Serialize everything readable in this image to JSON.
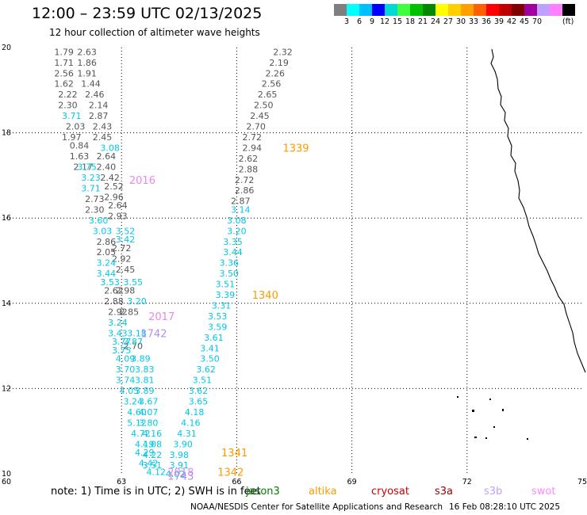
{
  "header": {
    "title": "12:00 – 23:59 UTC 02/13/2025",
    "subtitle": "12 hour collection of altimeter wave heights"
  },
  "colorbar": {
    "colors": [
      "#7f7f7f",
      "#00ffff",
      "#00bfff",
      "#0000ff",
      "#00d8d8",
      "#40ff40",
      "#00c000",
      "#008800",
      "#ffff00",
      "#ffd000",
      "#ffa000",
      "#ff6000",
      "#ff0000",
      "#c00000",
      "#800000",
      "#a000a0",
      "#c0a0ff",
      "#ff80ff",
      "#000000"
    ],
    "labels": [
      "3",
      "6",
      "9",
      "12",
      "15",
      "18",
      "21",
      "24",
      "27",
      "30",
      "33",
      "36",
      "39",
      "42",
      "45",
      "70"
    ],
    "unit": "(ft)"
  },
  "footer": {
    "note": "note: 1) Time is in UTC; 2) SWH is in feet",
    "satellites": [
      {
        "name": "jason3",
        "color": "#008000"
      },
      {
        "name": "altika",
        "color": "#ff9900"
      },
      {
        "name": "cryosat",
        "color": "#cc0000"
      },
      {
        "name": "s3a",
        "color": "#990000"
      },
      {
        "name": "s3b",
        "color": "#c0a0ff"
      },
      {
        "name": "swot",
        "color": "#ff88ff"
      }
    ],
    "credit": "NOAA/NESDIS Center for Satellite Applications and Research",
    "timestamp": "16 Feb 08:28:10 UTC 2025"
  },
  "chart_data": {
    "type": "scatter",
    "xlim": [
      60,
      75
    ],
    "ylim": [
      10,
      20
    ],
    "x_ticks": [
      "60",
      "63",
      "66",
      "69",
      "72",
      "75"
    ],
    "y_ticks": [
      "10",
      "12",
      "14",
      "16",
      "18",
      "20"
    ],
    "grid": true,
    "tracks": [
      {
        "name": "gray-west",
        "color": "#555555",
        "points": [
          {
            "x": 61.5,
            "y": 19.9,
            "v": "1.79"
          },
          {
            "x": 61.5,
            "y": 19.65,
            "v": "1.71"
          },
          {
            "x": 61.5,
            "y": 19.4,
            "v": "2.56"
          },
          {
            "x": 61.5,
            "y": 19.15,
            "v": "1.62"
          },
          {
            "x": 61.6,
            "y": 18.9,
            "v": "2.22"
          },
          {
            "x": 61.6,
            "y": 18.65,
            "v": "2.30"
          },
          {
            "x": 61.8,
            "y": 18.15,
            "v": "2.03"
          },
          {
            "x": 61.7,
            "y": 17.9,
            "v": "1.97"
          },
          {
            "x": 61.9,
            "y": 17.7,
            "v": "0.84"
          },
          {
            "x": 61.9,
            "y": 17.45,
            "v": "1.63"
          },
          {
            "x": 62.0,
            "y": 17.2,
            "v": "2.17"
          },
          {
            "x": 62.3,
            "y": 16.45,
            "v": "2.73"
          },
          {
            "x": 62.3,
            "y": 16.2,
            "v": "2.30"
          },
          {
            "x": 62.6,
            "y": 15.45,
            "v": "2.86"
          },
          {
            "x": 62.6,
            "y": 15.2,
            "v": "2.05"
          },
          {
            "x": 62.8,
            "y": 14.3,
            "v": "2.62"
          },
          {
            "x": 62.8,
            "y": 14.05,
            "v": "2.88"
          },
          {
            "x": 62.9,
            "y": 13.8,
            "v": "2.92"
          }
        ]
      },
      {
        "name": "gray-east",
        "color": "#555555",
        "points": [
          {
            "x": 62.1,
            "y": 19.9,
            "v": "2.63"
          },
          {
            "x": 62.1,
            "y": 19.65,
            "v": "1.86"
          },
          {
            "x": 62.1,
            "y": 19.4,
            "v": "1.91"
          },
          {
            "x": 62.2,
            "y": 19.15,
            "v": "1.44"
          },
          {
            "x": 62.3,
            "y": 18.9,
            "v": "2.46"
          },
          {
            "x": 62.4,
            "y": 18.65,
            "v": "2.14"
          },
          {
            "x": 62.4,
            "y": 18.4,
            "v": "2.87"
          },
          {
            "x": 62.5,
            "y": 18.15,
            "v": "2.43"
          },
          {
            "x": 62.5,
            "y": 17.9,
            "v": "2.45"
          },
          {
            "x": 62.6,
            "y": 17.45,
            "v": "2.64"
          },
          {
            "x": 62.6,
            "y": 17.2,
            "v": "2.40"
          },
          {
            "x": 62.7,
            "y": 16.95,
            "v": "2.42"
          },
          {
            "x": 62.8,
            "y": 16.75,
            "v": "2.52"
          },
          {
            "x": 62.8,
            "y": 16.5,
            "v": "2.96"
          },
          {
            "x": 62.9,
            "y": 16.3,
            "v": "2.64"
          },
          {
            "x": 62.9,
            "y": 16.05,
            "v": "2.93"
          },
          {
            "x": 63.0,
            "y": 15.3,
            "v": "2.72"
          },
          {
            "x": 63.0,
            "y": 15.05,
            "v": "2.92"
          },
          {
            "x": 63.1,
            "y": 14.8,
            "v": "2.45"
          },
          {
            "x": 63.1,
            "y": 14.3,
            "v": "2.98"
          },
          {
            "x": 63.2,
            "y": 13.8,
            "v": "2.85"
          },
          {
            "x": 63.3,
            "y": 13.0,
            "v": "2.70"
          }
        ]
      },
      {
        "name": "cyan-west",
        "color": "#00c8e6",
        "points": [
          {
            "x": 61.7,
            "y": 18.4,
            "v": "3.71"
          },
          {
            "x": 62.1,
            "y": 17.2,
            "v": "3.75"
          },
          {
            "x": 62.2,
            "y": 16.95,
            "v": "3.23"
          },
          {
            "x": 62.2,
            "y": 16.7,
            "v": "3.71"
          },
          {
            "x": 62.4,
            "y": 15.95,
            "v": "3.60"
          },
          {
            "x": 62.5,
            "y": 15.7,
            "v": "3.03"
          },
          {
            "x": 62.6,
            "y": 14.95,
            "v": "3.24"
          },
          {
            "x": 62.6,
            "y": 14.7,
            "v": "3.44"
          },
          {
            "x": 62.7,
            "y": 14.5,
            "v": "3.53"
          },
          {
            "x": 62.9,
            "y": 13.55,
            "v": "3.24"
          },
          {
            "x": 62.9,
            "y": 13.3,
            "v": "3.43"
          },
          {
            "x": 63.0,
            "y": 13.1,
            "v": "3.77"
          },
          {
            "x": 63.0,
            "y": 12.9,
            "v": "3.75"
          },
          {
            "x": 63.1,
            "y": 12.7,
            "v": "4.09"
          },
          {
            "x": 63.1,
            "y": 12.45,
            "v": "3.70"
          },
          {
            "x": 63.1,
            "y": 12.2,
            "v": "3.74"
          },
          {
            "x": 63.2,
            "y": 11.95,
            "v": "4.05"
          },
          {
            "x": 63.3,
            "y": 11.7,
            "v": "3.24"
          },
          {
            "x": 63.4,
            "y": 11.45,
            "v": "4.60"
          },
          {
            "x": 63.4,
            "y": 11.2,
            "v": "5.12"
          },
          {
            "x": 63.5,
            "y": 10.95,
            "v": "4.72"
          },
          {
            "x": 63.6,
            "y": 10.7,
            "v": "4.19"
          },
          {
            "x": 63.6,
            "y": 10.5,
            "v": "4.29"
          },
          {
            "x": 63.7,
            "y": 10.25,
            "v": "4.42"
          }
        ]
      },
      {
        "name": "cyan-east",
        "color": "#00c8e6",
        "points": [
          {
            "x": 62.7,
            "y": 17.65,
            "v": "3.08"
          },
          {
            "x": 63.1,
            "y": 15.7,
            "v": "3.52"
          },
          {
            "x": 63.1,
            "y": 15.5,
            "v": "3.42"
          },
          {
            "x": 63.3,
            "y": 14.5,
            "v": "3.55"
          },
          {
            "x": 63.4,
            "y": 14.05,
            "v": "3.20"
          },
          {
            "x": 63.4,
            "y": 13.3,
            "v": "3.18"
          },
          {
            "x": 63.3,
            "y": 13.1,
            "v": "3.87"
          },
          {
            "x": 63.5,
            "y": 12.7,
            "v": "3.89"
          },
          {
            "x": 63.6,
            "y": 12.45,
            "v": "3.83"
          },
          {
            "x": 63.6,
            "y": 12.2,
            "v": "3.81"
          },
          {
            "x": 63.6,
            "y": 11.95,
            "v": "3.89"
          },
          {
            "x": 63.7,
            "y": 11.7,
            "v": "3.67"
          },
          {
            "x": 63.7,
            "y": 11.45,
            "v": "4.07"
          },
          {
            "x": 63.7,
            "y": 11.2,
            "v": "3.80"
          },
          {
            "x": 63.8,
            "y": 10.95,
            "v": "4.16"
          },
          {
            "x": 63.8,
            "y": 10.7,
            "v": "4.08"
          },
          {
            "x": 63.8,
            "y": 10.45,
            "v": "4.22"
          },
          {
            "x": 63.8,
            "y": 10.2,
            "v": "3.51"
          },
          {
            "x": 63.9,
            "y": 10.05,
            "v": "4.12"
          }
        ]
      },
      {
        "name": "gray-middle",
        "color": "#555555",
        "points": [
          {
            "x": 67.2,
            "y": 19.9,
            "v": "2.32"
          },
          {
            "x": 67.1,
            "y": 19.65,
            "v": "2.19"
          },
          {
            "x": 67.0,
            "y": 19.4,
            "v": "2.26"
          },
          {
            "x": 66.9,
            "y": 19.15,
            "v": "2.56"
          },
          {
            "x": 66.8,
            "y": 18.9,
            "v": "2.65"
          },
          {
            "x": 66.7,
            "y": 18.65,
            "v": "2.50"
          },
          {
            "x": 66.6,
            "y": 18.4,
            "v": "2.45"
          },
          {
            "x": 66.5,
            "y": 18.15,
            "v": "2.70"
          },
          {
            "x": 66.4,
            "y": 17.9,
            "v": "2.72"
          },
          {
            "x": 66.4,
            "y": 17.65,
            "v": "2.94"
          },
          {
            "x": 66.3,
            "y": 17.4,
            "v": "2.62"
          },
          {
            "x": 66.3,
            "y": 17.15,
            "v": "2.88"
          },
          {
            "x": 66.2,
            "y": 16.9,
            "v": "2.72"
          },
          {
            "x": 66.2,
            "y": 16.65,
            "v": "2.86"
          },
          {
            "x": 66.1,
            "y": 16.4,
            "v": "2.87"
          }
        ]
      },
      {
        "name": "cyan-middle",
        "color": "#00c8e6",
        "points": [
          {
            "x": 66.1,
            "y": 16.2,
            "v": "3.14"
          },
          {
            "x": 66.0,
            "y": 15.95,
            "v": "3.08"
          },
          {
            "x": 66.0,
            "y": 15.7,
            "v": "3.20"
          },
          {
            "x": 65.9,
            "y": 15.45,
            "v": "3.35"
          },
          {
            "x": 65.9,
            "y": 15.2,
            "v": "3.44"
          },
          {
            "x": 65.8,
            "y": 14.95,
            "v": "3.36"
          },
          {
            "x": 65.8,
            "y": 14.7,
            "v": "3.50"
          },
          {
            "x": 65.7,
            "y": 14.45,
            "v": "3.51"
          },
          {
            "x": 65.7,
            "y": 14.2,
            "v": "3.39"
          },
          {
            "x": 65.6,
            "y": 13.95,
            "v": "3.31"
          },
          {
            "x": 65.5,
            "y": 13.7,
            "v": "3.53"
          },
          {
            "x": 65.5,
            "y": 13.45,
            "v": "3.59"
          },
          {
            "x": 65.4,
            "y": 13.2,
            "v": "3.61"
          },
          {
            "x": 65.3,
            "y": 12.95,
            "v": "3.41"
          },
          {
            "x": 65.3,
            "y": 12.7,
            "v": "3.50"
          },
          {
            "x": 65.2,
            "y": 12.45,
            "v": "3.62"
          },
          {
            "x": 65.1,
            "y": 12.2,
            "v": "3.51"
          },
          {
            "x": 65.0,
            "y": 11.95,
            "v": "3.62"
          },
          {
            "x": 65.0,
            "y": 11.7,
            "v": "3.65"
          },
          {
            "x": 64.9,
            "y": 11.45,
            "v": "4.18"
          },
          {
            "x": 64.8,
            "y": 11.2,
            "v": "4.16"
          },
          {
            "x": 64.7,
            "y": 10.95,
            "v": "4.31"
          },
          {
            "x": 64.6,
            "y": 10.7,
            "v": "3.90"
          },
          {
            "x": 64.5,
            "y": 10.45,
            "v": "3.98"
          },
          {
            "x": 64.5,
            "y": 10.2,
            "v": "3.91"
          },
          {
            "x": 64.4,
            "y": 10.0,
            "v": "4.02"
          }
        ]
      }
    ],
    "pass_labels": [
      {
        "text": "1339",
        "x": 67.2,
        "y": 17.65,
        "color": "#ff9900"
      },
      {
        "text": "1340",
        "x": 66.4,
        "y": 14.2,
        "color": "#ff9900"
      },
      {
        "text": "1341",
        "x": 65.6,
        "y": 10.5,
        "color": "#ff9900"
      },
      {
        "text": "1342",
        "x": 65.5,
        "y": 10.05,
        "color": "#ff9900"
      },
      {
        "text": "2016",
        "x": 63.2,
        "y": 16.9,
        "color": "#e888e8"
      },
      {
        "text": "2017",
        "x": 63.7,
        "y": 13.7,
        "color": "#e888e8"
      },
      {
        "text": "1742",
        "x": 63.5,
        "y": 13.3,
        "color": "#b090f0"
      },
      {
        "text": "2018",
        "x": 64.2,
        "y": 10.05,
        "color": "#e888e8"
      },
      {
        "text": "1743",
        "x": 64.2,
        "y": 9.95,
        "color": "#b090f0"
      }
    ]
  }
}
